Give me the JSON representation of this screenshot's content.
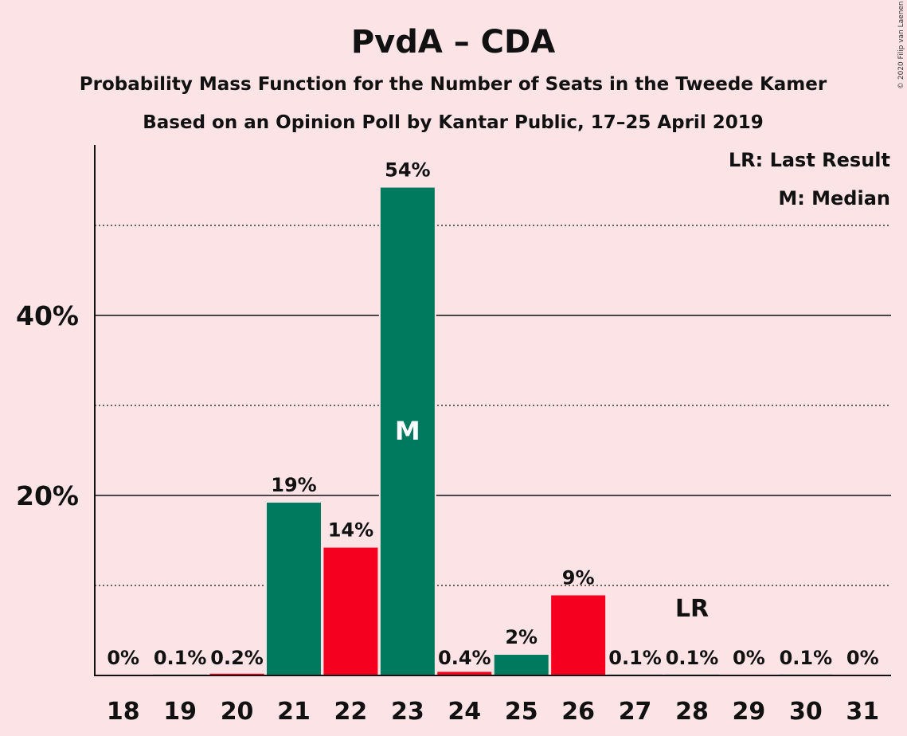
{
  "title": "PvdA – CDA",
  "subtitle1": "Probability Mass Function for the Number of Seats in the Tweede Kamer",
  "subtitle2": "Based on an Opinion Poll by Kantar Public, 17–25 April 2019",
  "copyright": "© 2020 Filip van Laenen",
  "legend": {
    "last_result": "LR: Last Result",
    "median": "M: Median"
  },
  "colors": {
    "background": "#fce4e6",
    "green": "#007a5e",
    "red": "#f5001e"
  },
  "chart_data": {
    "type": "bar",
    "categories": [
      "18",
      "19",
      "20",
      "21",
      "22",
      "23",
      "24",
      "25",
      "26",
      "27",
      "28",
      "29",
      "30",
      "31"
    ],
    "values": [
      0,
      0.1,
      0.2,
      19.2,
      14.2,
      54.2,
      0.4,
      2.3,
      8.9,
      0.1,
      0.1,
      0,
      0.1,
      0
    ],
    "labels": [
      "0%",
      "0.1%",
      "0.2%",
      "19%",
      "14%",
      "54%",
      "0.4%",
      "2%",
      "9%",
      "0.1%",
      "0.1%",
      "0%",
      "0.1%",
      "0%"
    ],
    "bar_colors": [
      "green",
      "green",
      "red",
      "green",
      "red",
      "green",
      "red",
      "green",
      "red",
      "green",
      "green",
      "green",
      "green",
      "green"
    ],
    "ylim": [
      0,
      59
    ],
    "yticks": [
      {
        "value": 20,
        "label": "20%"
      },
      {
        "value": 40,
        "label": "40%"
      }
    ],
    "minor_gridlines": [
      10,
      30,
      50
    ],
    "median_seat": "23",
    "median_marker": "M",
    "last_result_seat": "28",
    "last_result_marker": "LR"
  }
}
